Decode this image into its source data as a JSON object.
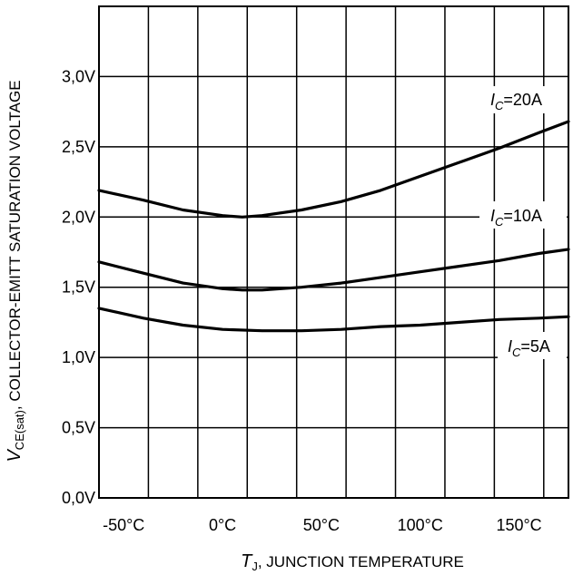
{
  "chart_data": {
    "type": "line",
    "xlabel": {
      "symbol": "T",
      "subscript": "J",
      "text": ", JUNCTION TEMPERATURE"
    },
    "ylabel": {
      "symbol": "V",
      "subscript": "CE(sat)",
      "text": ", COLLECTOR-EMITT SATURATION VOLTAGE"
    },
    "xlim": [
      -62.5,
      175
    ],
    "ylim": [
      0,
      3.5
    ],
    "x_ticks": [
      {
        "value": -50,
        "label": "-50°C"
      },
      {
        "value": 0,
        "label": "0°C"
      },
      {
        "value": 50,
        "label": "50°C"
      },
      {
        "value": 100,
        "label": "100°C"
      },
      {
        "value": 150,
        "label": "150°C"
      }
    ],
    "y_ticks": [
      {
        "value": 0,
        "label": "0,0V"
      },
      {
        "value": 0.5,
        "label": "0,5V"
      },
      {
        "value": 1.0,
        "label": "1,0V"
      },
      {
        "value": 1.5,
        "label": "1,5V"
      },
      {
        "value": 2.0,
        "label": "2,0V"
      },
      {
        "value": 2.5,
        "label": "2,5V"
      },
      {
        "value": 3.0,
        "label": "3,0V"
      }
    ],
    "x_grid": [
      -62.5,
      -37.5,
      -12.5,
      12.5,
      37.5,
      62.5,
      87.5,
      112.5,
      137.5,
      162.5
    ],
    "y_grid": [
      0.5,
      1.0,
      1.5,
      2.0,
      2.5,
      3.0
    ],
    "grid": true,
    "series": [
      {
        "name": "20A",
        "label_symbol": "I",
        "label_subscript": "C",
        "label_value": "=20A",
        "x": [
          -62.5,
          -40,
          -20,
          0,
          10,
          20,
          40,
          60,
          80,
          100,
          120,
          140,
          160,
          175
        ],
        "y": [
          2.19,
          2.12,
          2.05,
          2.01,
          2.0,
          2.01,
          2.05,
          2.11,
          2.19,
          2.29,
          2.39,
          2.49,
          2.6,
          2.68
        ]
      },
      {
        "name": "10A",
        "label_symbol": "I",
        "label_subscript": "C",
        "label_value": "=10A",
        "x": [
          -62.5,
          -40,
          -20,
          0,
          10,
          20,
          40,
          60,
          80,
          100,
          120,
          140,
          160,
          175
        ],
        "y": [
          1.68,
          1.6,
          1.53,
          1.49,
          1.48,
          1.48,
          1.5,
          1.53,
          1.57,
          1.61,
          1.65,
          1.69,
          1.74,
          1.77
        ]
      },
      {
        "name": "5A",
        "label_symbol": "I",
        "label_subscript": "C",
        "label_value": "=5A",
        "x": [
          -62.5,
          -40,
          -20,
          0,
          20,
          40,
          60,
          80,
          100,
          120,
          140,
          160,
          175
        ],
        "y": [
          1.35,
          1.28,
          1.23,
          1.2,
          1.19,
          1.19,
          1.2,
          1.22,
          1.23,
          1.25,
          1.27,
          1.28,
          1.29
        ]
      }
    ]
  }
}
